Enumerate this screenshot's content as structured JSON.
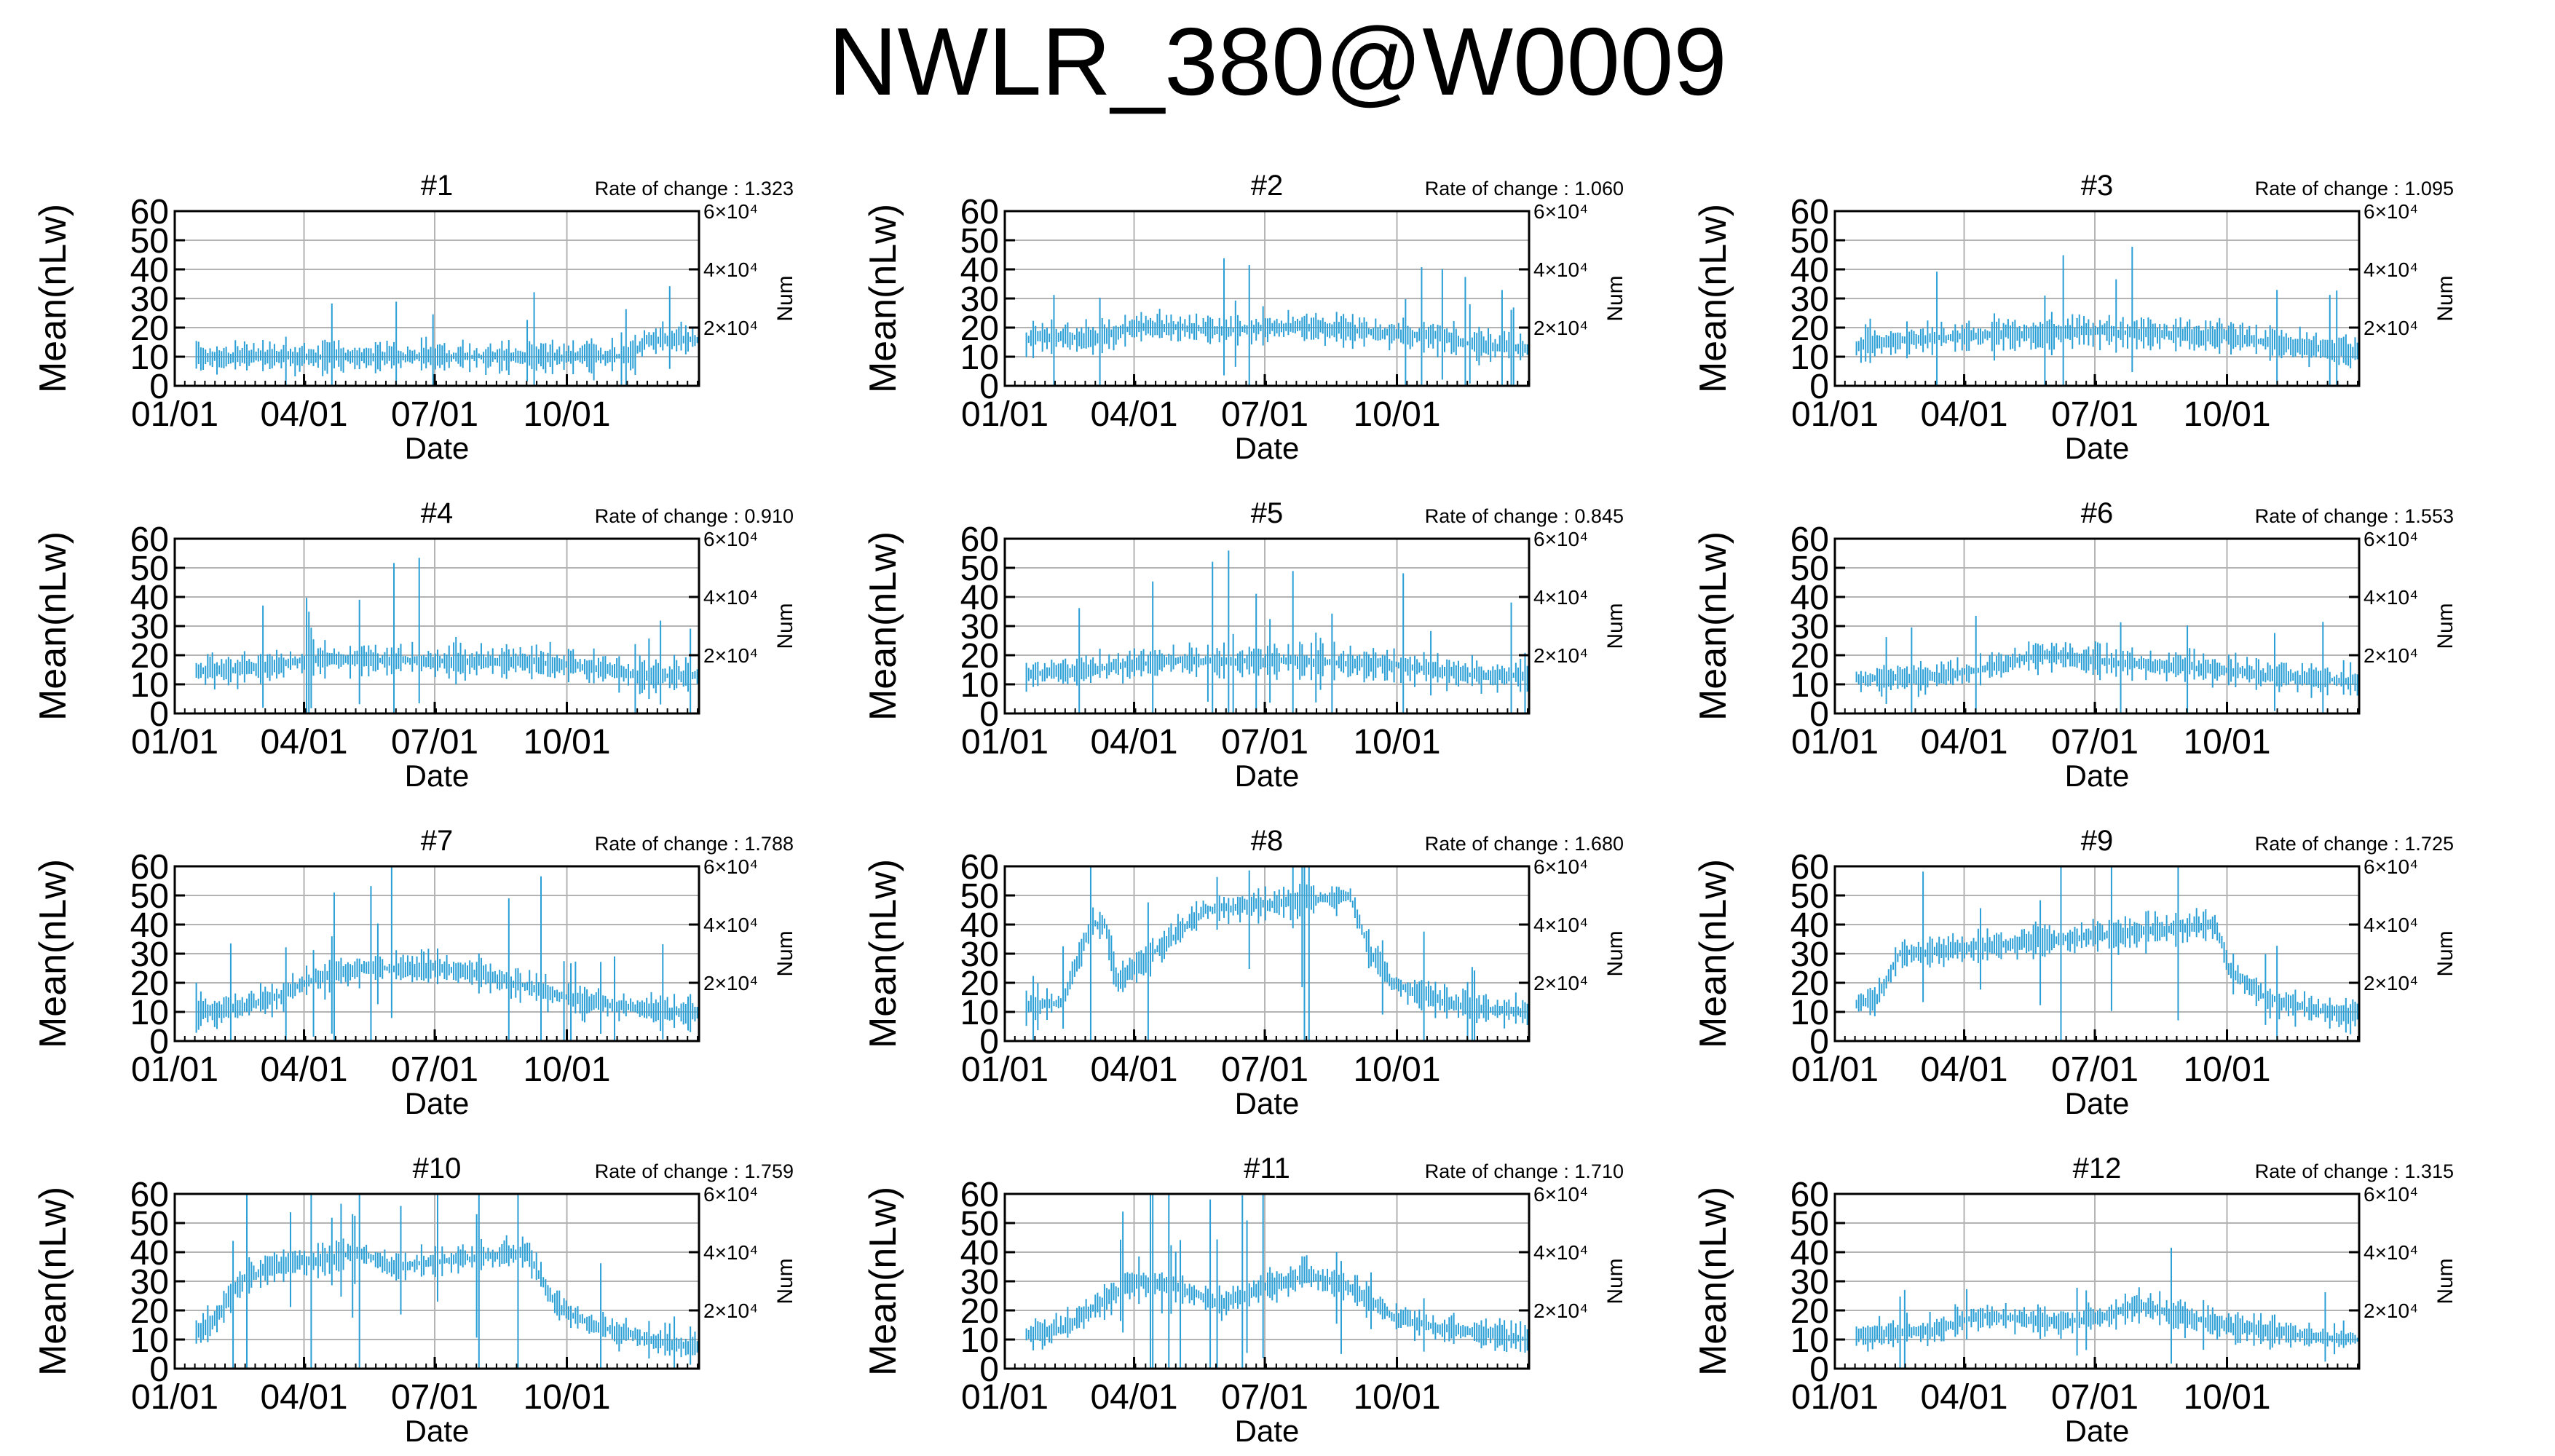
{
  "page_title": "NWLR_380@W0009",
  "colors": {
    "data": "#2a9fd6",
    "grid": "#b3b3b3",
    "axis": "#000000"
  },
  "chart_data": [
    {
      "type": "line",
      "title": "#1",
      "rate_label": "Rate of change : 1.323",
      "xlabel": "Date",
      "ylabel": "Mean(nLw)",
      "y2label": "Num",
      "ylim": [
        0,
        60
      ],
      "y_ticks": [
        0,
        10,
        20,
        30,
        40,
        50,
        60
      ],
      "x_ticks": [
        "01/01",
        "04/01",
        "07/01",
        "10/01"
      ],
      "y2_ticks": [
        "2×10⁴",
        "4×10⁴",
        "6×10⁴"
      ],
      "grid": true,
      "profile": [
        [
          0,
          10
        ],
        [
          16,
          10
        ],
        [
          30,
          10
        ],
        [
          55,
          10
        ],
        [
          90,
          10
        ],
        [
          150,
          10
        ],
        [
          210,
          10
        ],
        [
          270,
          10
        ],
        [
          300,
          10
        ],
        [
          318,
          10
        ],
        [
          330,
          16
        ],
        [
          365,
          16
        ]
      ]
    },
    {
      "type": "line",
      "title": "#2",
      "rate_label": "Rate of change : 1.060",
      "xlabel": "Date",
      "ylabel": "Mean(nLw)",
      "y2label": "Num",
      "ylim": [
        0,
        60
      ],
      "y_ticks": [
        0,
        10,
        20,
        30,
        40,
        50,
        60
      ],
      "x_ticks": [
        "01/01",
        "04/01",
        "07/01",
        "10/01"
      ],
      "y2_ticks": [
        "2×10⁴",
        "4×10⁴",
        "6×10⁴"
      ],
      "grid": true,
      "profile": [
        [
          0,
          15
        ],
        [
          30,
          17
        ],
        [
          60,
          16
        ],
        [
          90,
          20
        ],
        [
          120,
          20
        ],
        [
          150,
          19
        ],
        [
          180,
          20
        ],
        [
          210,
          20
        ],
        [
          240,
          19
        ],
        [
          270,
          18
        ],
        [
          300,
          17
        ],
        [
          330,
          14
        ],
        [
          365,
          13
        ]
      ]
    },
    {
      "type": "line",
      "title": "#3",
      "rate_label": "Rate of change : 1.095",
      "xlabel": "Date",
      "ylabel": "Mean(nLw)",
      "y2label": "Num",
      "ylim": [
        0,
        60
      ],
      "y_ticks": [
        0,
        10,
        20,
        30,
        40,
        50,
        60
      ],
      "x_ticks": [
        "01/01",
        "04/01",
        "07/01",
        "10/01"
      ],
      "y2_ticks": [
        "2×10⁴",
        "4×10⁴",
        "6×10⁴"
      ],
      "grid": true,
      "profile": [
        [
          0,
          12
        ],
        [
          30,
          15
        ],
        [
          60,
          16
        ],
        [
          90,
          17
        ],
        [
          120,
          18
        ],
        [
          150,
          18
        ],
        [
          180,
          19
        ],
        [
          210,
          18
        ],
        [
          240,
          18
        ],
        [
          270,
          17
        ],
        [
          300,
          15
        ],
        [
          330,
          13
        ],
        [
          365,
          12
        ]
      ]
    },
    {
      "type": "line",
      "title": "#4",
      "rate_label": "Rate of change : 0.910",
      "xlabel": "Date",
      "ylabel": "Mean(nLw)",
      "y2label": "Num",
      "ylim": [
        0,
        60
      ],
      "y_ticks": [
        0,
        10,
        20,
        30,
        40,
        50,
        60
      ],
      "x_ticks": [
        "01/01",
        "04/01",
        "07/01",
        "10/01"
      ],
      "y2_ticks": [
        "2×10⁴",
        "4×10⁴",
        "6×10⁴"
      ],
      "grid": true,
      "profile": [
        [
          0,
          13
        ],
        [
          30,
          15
        ],
        [
          60,
          16
        ],
        [
          90,
          18
        ],
        [
          120,
          19
        ],
        [
          150,
          18
        ],
        [
          180,
          18
        ],
        [
          210,
          18
        ],
        [
          240,
          18
        ],
        [
          270,
          17
        ],
        [
          300,
          15
        ],
        [
          330,
          13
        ],
        [
          365,
          13
        ]
      ]
    },
    {
      "type": "line",
      "title": "#5",
      "rate_label": "Rate of change : 0.845",
      "xlabel": "Date",
      "ylabel": "Mean(nLw)",
      "y2label": "Num",
      "ylim": [
        0,
        60
      ],
      "y_ticks": [
        0,
        10,
        20,
        30,
        40,
        50,
        60
      ],
      "x_ticks": [
        "01/01",
        "04/01",
        "07/01",
        "10/01"
      ],
      "y2_ticks": [
        "2×10⁴",
        "4×10⁴",
        "6×10⁴"
      ],
      "grid": true,
      "profile": [
        [
          0,
          13
        ],
        [
          30,
          14
        ],
        [
          60,
          15
        ],
        [
          90,
          17
        ],
        [
          120,
          18
        ],
        [
          150,
          18
        ],
        [
          180,
          18
        ],
        [
          210,
          18
        ],
        [
          240,
          17
        ],
        [
          270,
          17
        ],
        [
          300,
          15
        ],
        [
          330,
          13
        ],
        [
          365,
          13
        ]
      ]
    },
    {
      "type": "line",
      "title": "#6",
      "rate_label": "Rate of change : 1.553",
      "xlabel": "Date",
      "ylabel": "Mean(nLw)",
      "y2label": "Num",
      "ylim": [
        0,
        60
      ],
      "y_ticks": [
        0,
        10,
        20,
        30,
        40,
        50,
        60
      ],
      "x_ticks": [
        "01/01",
        "04/01",
        "07/01",
        "10/01"
      ],
      "y2_ticks": [
        "2×10⁴",
        "4×10⁴",
        "6×10⁴"
      ],
      "grid": true,
      "profile": [
        [
          0,
          12
        ],
        [
          30,
          12
        ],
        [
          60,
          12
        ],
        [
          90,
          14
        ],
        [
          120,
          17
        ],
        [
          140,
          20
        ],
        [
          160,
          20
        ],
        [
          180,
          18
        ],
        [
          210,
          17
        ],
        [
          240,
          16
        ],
        [
          270,
          15
        ],
        [
          300,
          13
        ],
        [
          330,
          12
        ],
        [
          365,
          11
        ]
      ]
    },
    {
      "type": "line",
      "title": "#7",
      "rate_label": "Rate of change : 1.788",
      "xlabel": "Date",
      "ylabel": "Mean(nLw)",
      "y2label": "Num",
      "ylim": [
        0,
        60
      ],
      "y_ticks": [
        0,
        10,
        20,
        30,
        40,
        50,
        60
      ],
      "x_ticks": [
        "01/01",
        "04/01",
        "07/01",
        "10/01"
      ],
      "y2_ticks": [
        "2×10⁴",
        "4×10⁴",
        "6×10⁴"
      ],
      "grid": true,
      "profile": [
        [
          0,
          10
        ],
        [
          40,
          11
        ],
        [
          70,
          15
        ],
        [
          100,
          22
        ],
        [
          130,
          25
        ],
        [
          160,
          25
        ],
        [
          190,
          25
        ],
        [
          220,
          22
        ],
        [
          250,
          18
        ],
        [
          280,
          14
        ],
        [
          310,
          12
        ],
        [
          340,
          10
        ],
        [
          365,
          10
        ]
      ]
    },
    {
      "type": "line",
      "title": "#8",
      "rate_label": "Rate of change : 1.680",
      "xlabel": "Date",
      "ylabel": "Mean(nLw)",
      "y2label": "Num",
      "ylim": [
        0,
        60
      ],
      "y_ticks": [
        0,
        10,
        20,
        30,
        40,
        50,
        60
      ],
      "x_ticks": [
        "01/01",
        "04/01",
        "07/01",
        "10/01"
      ],
      "y2_ticks": [
        "2×10⁴",
        "4×10⁴",
        "6×10⁴"
      ],
      "grid": true,
      "profile": [
        [
          0,
          12
        ],
        [
          40,
          13
        ],
        [
          60,
          40
        ],
        [
          70,
          40
        ],
        [
          78,
          20
        ],
        [
          140,
          45
        ],
        [
          240,
          50
        ],
        [
          255,
          30
        ],
        [
          270,
          20
        ],
        [
          300,
          14
        ],
        [
          330,
          11
        ],
        [
          365,
          10
        ]
      ]
    },
    {
      "type": "line",
      "title": "#9",
      "rate_label": "Rate of change : 1.725",
      "xlabel": "Date",
      "ylabel": "Mean(nLw)",
      "y2label": "Num",
      "ylim": [
        0,
        60
      ],
      "y_ticks": [
        0,
        10,
        20,
        30,
        40,
        50,
        60
      ],
      "x_ticks": [
        "01/01",
        "04/01",
        "07/01",
        "10/01"
      ],
      "y2_ticks": [
        "2×10⁴",
        "4×10⁴",
        "6×10⁴"
      ],
      "grid": true,
      "profile": [
        [
          0,
          10
        ],
        [
          30,
          15
        ],
        [
          45,
          30
        ],
        [
          52,
          30
        ],
        [
          265,
          40
        ],
        [
          275,
          24
        ],
        [
          300,
          15
        ],
        [
          330,
          11
        ],
        [
          365,
          9
        ]
      ]
    },
    {
      "type": "line",
      "title": "#10",
      "rate_label": "Rate of change : 1.759",
      "xlabel": "Date",
      "ylabel": "Mean(nLw)",
      "y2label": "Num",
      "ylim": [
        0,
        60
      ],
      "y_ticks": [
        0,
        10,
        20,
        30,
        40,
        50,
        60
      ],
      "x_ticks": [
        "01/01",
        "04/01",
        "07/01",
        "10/01"
      ],
      "y2_ticks": [
        "2×10⁴",
        "4×10⁴",
        "6×10⁴"
      ],
      "grid": true,
      "profile": [
        [
          0,
          8
        ],
        [
          25,
          15
        ],
        [
          45,
          30
        ],
        [
          70,
          35
        ],
        [
          130,
          40
        ],
        [
          150,
          35
        ],
        [
          245,
          40
        ],
        [
          265,
          22
        ],
        [
          290,
          15
        ],
        [
          330,
          10
        ],
        [
          365,
          7
        ]
      ]
    },
    {
      "type": "line",
      "title": "#11",
      "rate_label": "Rate of change : 1.710",
      "xlabel": "Date",
      "ylabel": "Mean(nLw)",
      "y2label": "Num",
      "ylim": [
        0,
        60
      ],
      "y_ticks": [
        0,
        10,
        20,
        30,
        40,
        50,
        60
      ],
      "x_ticks": [
        "01/01",
        "04/01",
        "07/01",
        "10/01"
      ],
      "y2_ticks": [
        "2×10⁴",
        "4×10⁴",
        "6×10⁴"
      ],
      "grid": true,
      "profile": [
        [
          0,
          10
        ],
        [
          40,
          14
        ],
        [
          60,
          20
        ],
        [
          90,
          30
        ],
        [
          120,
          28
        ],
        [
          150,
          22
        ],
        [
          180,
          28
        ],
        [
          210,
          32
        ],
        [
          240,
          28
        ],
        [
          270,
          18
        ],
        [
          300,
          14
        ],
        [
          330,
          12
        ],
        [
          365,
          10
        ]
      ]
    },
    {
      "type": "line",
      "title": "#12",
      "rate_label": "Rate of change : 1.315",
      "xlabel": "Date",
      "ylabel": "Mean(nLw)",
      "y2label": "Num",
      "ylim": [
        0,
        60
      ],
      "y_ticks": [
        0,
        10,
        20,
        30,
        40,
        50,
        60
      ],
      "x_ticks": [
        "01/01",
        "04/01",
        "07/01",
        "10/01"
      ],
      "y2_ticks": [
        "2×10⁴",
        "4×10⁴",
        "6×10⁴"
      ],
      "grid": true,
      "profile": [
        [
          0,
          11
        ],
        [
          40,
          12
        ],
        [
          70,
          13
        ],
        [
          100,
          18
        ],
        [
          130,
          17
        ],
        [
          160,
          16
        ],
        [
          190,
          18
        ],
        [
          210,
          22
        ],
        [
          240,
          18
        ],
        [
          270,
          15
        ],
        [
          300,
          13
        ],
        [
          330,
          11
        ],
        [
          365,
          10
        ]
      ]
    }
  ]
}
